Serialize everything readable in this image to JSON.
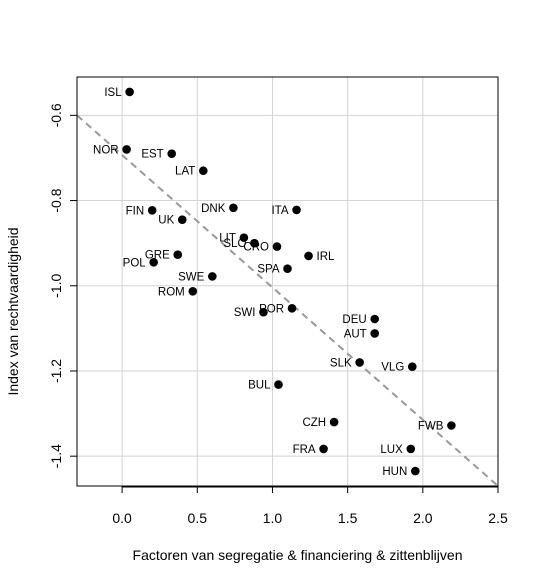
{
  "chart_data": {
    "type": "scatter",
    "xlabel": "Factoren van segregatie & financiering & zittenblijven",
    "ylabel": "Index van rechtvaardigheid",
    "xlim": [
      -0.3,
      2.5
    ],
    "ylim": [
      -1.47,
      -0.51
    ],
    "x_ticks": [
      0.0,
      0.5,
      1.0,
      1.5,
      2.0,
      2.5
    ],
    "x_tick_labels": [
      "0.0",
      "0.5",
      "1.0",
      "1.5",
      "2.0",
      "2.5"
    ],
    "y_ticks": [
      -0.6,
      -0.8,
      -1.0,
      -1.2,
      -1.4
    ],
    "y_tick_labels": [
      "-0.6",
      "-0.8",
      "-1.0",
      "-1.2",
      "-1.4"
    ],
    "grid": true,
    "point_color": "#000000",
    "grid_color": "#d3d3d3",
    "trendline": {
      "x": [
        -0.3,
        2.5
      ],
      "y": [
        -0.6,
        -1.47
      ],
      "style": "dashed",
      "color": "#999999"
    },
    "points": [
      {
        "label": "ISL",
        "x": 0.05,
        "y": -0.545,
        "label_side": "left"
      },
      {
        "label": "NOR",
        "x": 0.03,
        "y": -0.68,
        "label_side": "left"
      },
      {
        "label": "EST",
        "x": 0.33,
        "y": -0.69,
        "label_side": "left"
      },
      {
        "label": "LAT",
        "x": 0.54,
        "y": -0.73,
        "label_side": "left"
      },
      {
        "label": "FIN",
        "x": 0.2,
        "y": -0.823,
        "label_side": "left"
      },
      {
        "label": "UK",
        "x": 0.4,
        "y": -0.845,
        "label_side": "left"
      },
      {
        "label": "DNK",
        "x": 0.74,
        "y": -0.817,
        "label_side": "left"
      },
      {
        "label": "ITA",
        "x": 1.16,
        "y": -0.822,
        "label_side": "left"
      },
      {
        "label": "LIT",
        "x": 0.81,
        "y": -0.887,
        "label_side": "left"
      },
      {
        "label": "SLO",
        "x": 0.88,
        "y": -0.9,
        "label_side": "left"
      },
      {
        "label": "CRO",
        "x": 1.03,
        "y": -0.908,
        "label_side": "left"
      },
      {
        "label": "IRL",
        "x": 1.24,
        "y": -0.93,
        "label_side": "right"
      },
      {
        "label": "GRE",
        "x": 0.37,
        "y": -0.927,
        "label_side": "left"
      },
      {
        "label": "POL",
        "x": 0.21,
        "y": -0.945,
        "label_side": "left"
      },
      {
        "label": "SPA",
        "x": 1.1,
        "y": -0.96,
        "label_side": "left"
      },
      {
        "label": "SWE",
        "x": 0.6,
        "y": -0.978,
        "label_side": "left"
      },
      {
        "label": "ROM",
        "x": 0.47,
        "y": -1.013,
        "label_side": "left"
      },
      {
        "label": "SWI",
        "x": 0.94,
        "y": -1.062,
        "label_side": "left"
      },
      {
        "label": "POR",
        "x": 1.13,
        "y": -1.053,
        "label_side": "left"
      },
      {
        "label": "DEU",
        "x": 1.68,
        "y": -1.078,
        "label_side": "left"
      },
      {
        "label": "AUT",
        "x": 1.68,
        "y": -1.112,
        "label_side": "left"
      },
      {
        "label": "SLK",
        "x": 1.58,
        "y": -1.18,
        "label_side": "left"
      },
      {
        "label": "VLG",
        "x": 1.93,
        "y": -1.19,
        "label_side": "left"
      },
      {
        "label": "BUL",
        "x": 1.04,
        "y": -1.232,
        "label_side": "left"
      },
      {
        "label": "CZH",
        "x": 1.41,
        "y": -1.32,
        "label_side": "left"
      },
      {
        "label": "FWB",
        "x": 2.19,
        "y": -1.328,
        "label_side": "left"
      },
      {
        "label": "FRA",
        "x": 1.34,
        "y": -1.383,
        "label_side": "left"
      },
      {
        "label": "LUX",
        "x": 1.92,
        "y": -1.383,
        "label_side": "left"
      },
      {
        "label": "HUN",
        "x": 1.95,
        "y": -1.435,
        "label_side": "left"
      }
    ]
  }
}
